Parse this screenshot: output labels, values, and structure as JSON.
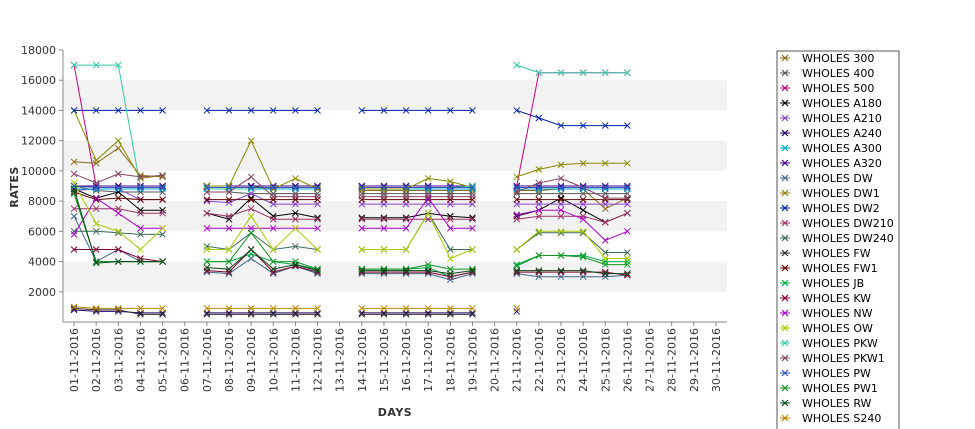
{
  "chart_data": {
    "type": "line",
    "title": "",
    "xlabel": "DAYS",
    "ylabel": "RATES",
    "ylim": [
      0,
      18000
    ],
    "yticks": [
      2000,
      4000,
      6000,
      8000,
      10000,
      12000,
      14000,
      16000,
      18000
    ],
    "grid": "alternating horizontal bands",
    "legend_position": "right",
    "categories": [
      "01-11-2016",
      "02-11-2016",
      "03-11-2016",
      "04-11-2016",
      "05-11-2016",
      "06-11-2016",
      "07-11-2016",
      "08-11-2016",
      "09-11-2016",
      "10-11-2016",
      "11-11-2016",
      "12-11-2016",
      "13-11-2016",
      "14-11-2016",
      "15-11-2016",
      "16-11-2016",
      "17-11-2016",
      "18-11-2016",
      "19-11-2016",
      "20-11-2016",
      "21-11-2016",
      "22-11-2016",
      "23-11-2016",
      "24-11-2016",
      "25-11-2016",
      "26-11-2016",
      "27-11-2016",
      "28-11-2016",
      "29-11-2016",
      "30-11-2016"
    ],
    "series": [
      {
        "name": "WHOLES 300",
        "color": "#8b6914",
        "values": [
          10600,
          10500,
          11500,
          9700,
          9600,
          null,
          9000,
          9000,
          9000,
          8800,
          8800,
          8800,
          null,
          8700,
          8700,
          8700,
          8700,
          8700,
          8700,
          null,
          8700,
          8700,
          8800,
          8800,
          7500,
          8200,
          null,
          null,
          null,
          null
        ]
      },
      {
        "name": "WHOLES 400",
        "color": "#555555",
        "values": [
          9000,
          8700,
          8600,
          8600,
          8600,
          null,
          8600,
          8600,
          8500,
          8500,
          8500,
          8500,
          null,
          8500,
          8500,
          8500,
          8500,
          8500,
          8500,
          null,
          8500,
          8500,
          8500,
          8500,
          8500,
          8500,
          null,
          null,
          null,
          null
        ]
      },
      {
        "name": "WHOLES 500",
        "color": "#cc0077",
        "values": [
          17000,
          9000,
          9000,
          9000,
          9000,
          null,
          9000,
          9000,
          9000,
          9000,
          9000,
          9000,
          null,
          9000,
          9000,
          9000,
          9000,
          9000,
          9000,
          null,
          9000,
          16500,
          16500,
          16500,
          16500,
          16500,
          null,
          null,
          null,
          null
        ]
      },
      {
        "name": "WHOLES A180",
        "color": "#000000",
        "values": [
          8800,
          8200,
          8600,
          7400,
          7400,
          null,
          7200,
          6800,
          8200,
          7000,
          7200,
          6900,
          null,
          6900,
          6900,
          6900,
          7200,
          7000,
          6900,
          null,
          7000,
          7400,
          8200,
          7400,
          6600,
          7200,
          null,
          null,
          null,
          null
        ]
      },
      {
        "name": "WHOLES A210",
        "color": "#8844cc",
        "values": [
          8700,
          8800,
          8800,
          8100,
          8100,
          null,
          8000,
          7900,
          8500,
          7800,
          7800,
          7800,
          null,
          7800,
          7800,
          7800,
          7800,
          7800,
          7800,
          null,
          7800,
          7800,
          7800,
          7800,
          7800,
          7800,
          null,
          null,
          null,
          null
        ]
      },
      {
        "name": "WHOLES A240",
        "color": "#220066",
        "values": [
          800,
          700,
          700,
          600,
          600,
          null,
          600,
          600,
          600,
          600,
          600,
          600,
          null,
          600,
          600,
          600,
          600,
          600,
          600,
          null,
          700,
          null,
          null,
          null,
          null,
          null,
          null,
          null,
          null,
          null
        ]
      },
      {
        "name": "WHOLES A300",
        "color": "#00aacc",
        "values": [
          8800,
          8800,
          8800,
          8800,
          8800,
          null,
          8800,
          8800,
          8800,
          8800,
          8800,
          8800,
          null,
          8800,
          8800,
          8800,
          8800,
          8800,
          8800,
          null,
          8800,
          8800,
          8800,
          8800,
          8800,
          8800,
          null,
          null,
          null,
          null
        ]
      },
      {
        "name": "WHOLES A320",
        "color": "#440088",
        "values": [
          9000,
          9000,
          9000,
          9000,
          9000,
          null,
          9000,
          9000,
          9000,
          9000,
          9000,
          9000,
          null,
          9000,
          9000,
          9000,
          9000,
          9000,
          9000,
          null,
          9000,
          9000,
          9000,
          9000,
          9000,
          9000,
          null,
          null,
          null,
          null
        ]
      },
      {
        "name": "WHOLES DW",
        "color": "#446688",
        "values": [
          7000,
          4000,
          4800,
          4000,
          4000,
          null,
          3300,
          3200,
          4200,
          3200,
          3700,
          3200,
          null,
          3200,
          3200,
          3200,
          3200,
          2800,
          3200,
          null,
          3200,
          3000,
          3000,
          3000,
          3000,
          3100,
          null,
          null,
          null,
          null
        ]
      },
      {
        "name": "WHOLES DW1",
        "color": "#888800",
        "values": [
          14000,
          10700,
          12000,
          9500,
          9700,
          null,
          9000,
          9000,
          12000,
          8800,
          9500,
          8800,
          null,
          8800,
          8800,
          8800,
          9500,
          9300,
          8900,
          null,
          9600,
          10100,
          10400,
          10500,
          10500,
          10500,
          null,
          null,
          null,
          null
        ]
      },
      {
        "name": "WHOLES DW2",
        "color": "#0022aa",
        "values": [
          14000,
          14000,
          14000,
          14000,
          14000,
          null,
          14000,
          14000,
          14000,
          14000,
          14000,
          14000,
          null,
          14000,
          14000,
          14000,
          14000,
          14000,
          14000,
          null,
          14000,
          13500,
          13000,
          13000,
          13000,
          13000,
          null,
          null,
          null,
          null
        ]
      },
      {
        "name": "WHOLES DW210",
        "color": "#993366",
        "values": [
          7500,
          7500,
          7500,
          7200,
          7200,
          null,
          7200,
          7000,
          7500,
          6800,
          6800,
          6800,
          null,
          6800,
          6800,
          6800,
          6800,
          6800,
          6800,
          null,
          6800,
          7000,
          7000,
          7000,
          6600,
          7200,
          null,
          null,
          null,
          null
        ]
      },
      {
        "name": "WHOLES DW240",
        "color": "#3a6a5a",
        "values": [
          6000,
          6000,
          5900,
          5800,
          5800,
          null,
          5000,
          4800,
          5900,
          4800,
          5000,
          4800,
          null,
          4800,
          4800,
          4800,
          7200,
          4800,
          4800,
          null,
          4800,
          5900,
          5900,
          5900,
          4600,
          4600,
          null,
          null,
          null,
          null
        ]
      },
      {
        "name": "WHOLES FW",
        "color": "#333333",
        "values": [
          900,
          800,
          800,
          500,
          500,
          null,
          500,
          500,
          500,
          500,
          500,
          500,
          null,
          500,
          500,
          500,
          500,
          500,
          500,
          null,
          null,
          null,
          null,
          null,
          null,
          null,
          null,
          null,
          null,
          null
        ]
      },
      {
        "name": "WHOLES FW1",
        "color": "#660000",
        "values": [
          8600,
          8100,
          8200,
          8100,
          8100,
          null,
          8100,
          8100,
          8100,
          8100,
          8100,
          8100,
          null,
          8100,
          8100,
          8100,
          8100,
          8100,
          8100,
          null,
          8100,
          8100,
          8100,
          8100,
          8100,
          8100,
          null,
          null,
          null,
          null
        ]
      },
      {
        "name": "WHOLES JB",
        "color": "#00aa44",
        "values": [
          8500,
          4000,
          4000,
          4000,
          4000,
          null,
          4000,
          4000,
          4500,
          4000,
          3800,
          3500,
          null,
          3500,
          3500,
          3500,
          3600,
          3000,
          3300,
          null,
          3800,
          4400,
          4400,
          4400,
          4000,
          4000,
          null,
          null,
          null,
          null
        ]
      },
      {
        "name": "WHOLES KW",
        "color": "#880033",
        "values": [
          4800,
          4800,
          4800,
          4200,
          4000,
          null,
          3400,
          3300,
          4800,
          3300,
          3700,
          3300,
          null,
          3300,
          3300,
          3300,
          3300,
          3000,
          3300,
          null,
          3300,
          3300,
          3300,
          3300,
          3300,
          3100,
          null,
          null,
          null,
          null
        ]
      },
      {
        "name": "WHOLES NW",
        "color": "#aa00cc",
        "values": [
          5800,
          8200,
          7200,
          6200,
          6200,
          null,
          6200,
          6200,
          6200,
          6200,
          6200,
          6200,
          null,
          6200,
          6200,
          6200,
          8200,
          6200,
          6200,
          null,
          7100,
          7400,
          7400,
          6800,
          5400,
          6000,
          null,
          null,
          null,
          null
        ]
      },
      {
        "name": "WHOLES OW",
        "color": "#aacc00",
        "values": [
          9200,
          6500,
          6000,
          4800,
          6200,
          null,
          4800,
          4800,
          7000,
          4800,
          6200,
          4800,
          null,
          4800,
          4800,
          4800,
          7200,
          4200,
          4800,
          null,
          4800,
          6000,
          6000,
          6000,
          4200,
          4200,
          null,
          null,
          null,
          null
        ]
      },
      {
        "name": "WHOLES PKW",
        "color": "#33ccaa",
        "values": [
          17000,
          17000,
          17000,
          8900,
          8900,
          null,
          8800,
          8800,
          8800,
          8900,
          8900,
          8900,
          null,
          8900,
          8900,
          8900,
          8900,
          8900,
          9000,
          null,
          17000,
          16500,
          16500,
          16500,
          16500,
          16500,
          null,
          null,
          null,
          null
        ]
      },
      {
        "name": "WHOLES PKW1",
        "color": "#884466",
        "values": [
          9800,
          9200,
          9800,
          9600,
          9700,
          null,
          8600,
          8600,
          9600,
          8300,
          8300,
          8300,
          null,
          8300,
          8300,
          8300,
          8300,
          8300,
          8300,
          null,
          8600,
          9200,
          9500,
          8900,
          8200,
          8200,
          null,
          null,
          null,
          null
        ]
      },
      {
        "name": "WHOLES PW",
        "color": "#3355bb",
        "values": [
          9000,
          8900,
          8900,
          8900,
          8900,
          null,
          8900,
          8900,
          8900,
          8900,
          8900,
          8900,
          null,
          8900,
          8900,
          8900,
          8900,
          8900,
          8900,
          null,
          8900,
          8900,
          8900,
          8900,
          8900,
          8900,
          null,
          null,
          null,
          null
        ]
      },
      {
        "name": "WHOLES PW1",
        "color": "#119922",
        "values": [
          8500,
          4000,
          4000,
          4000,
          4000,
          null,
          4000,
          4000,
          5900,
          4000,
          4000,
          3500,
          null,
          3500,
          3500,
          3500,
          3800,
          3500,
          3500,
          null,
          3700,
          4400,
          4400,
          4300,
          3800,
          3800,
          null,
          null,
          null,
          null
        ]
      },
      {
        "name": "WHOLES RW",
        "color": "#0a4a1a",
        "values": [
          8800,
          3900,
          4000,
          4000,
          4000,
          null,
          3600,
          3500,
          4800,
          3500,
          3800,
          3400,
          null,
          3400,
          3400,
          3400,
          3400,
          3200,
          3400,
          null,
          3400,
          3400,
          3400,
          3400,
          3200,
          3200,
          null,
          null,
          null,
          null
        ]
      },
      {
        "name": "WHOLES S240",
        "color": "#bb8800",
        "values": [
          1000,
          900,
          900,
          900,
          900,
          null,
          900,
          900,
          900,
          900,
          900,
          900,
          null,
          900,
          900,
          900,
          900,
          900,
          900,
          null,
          900,
          null,
          null,
          null,
          null,
          null,
          null,
          null,
          null,
          null
        ]
      }
    ]
  }
}
